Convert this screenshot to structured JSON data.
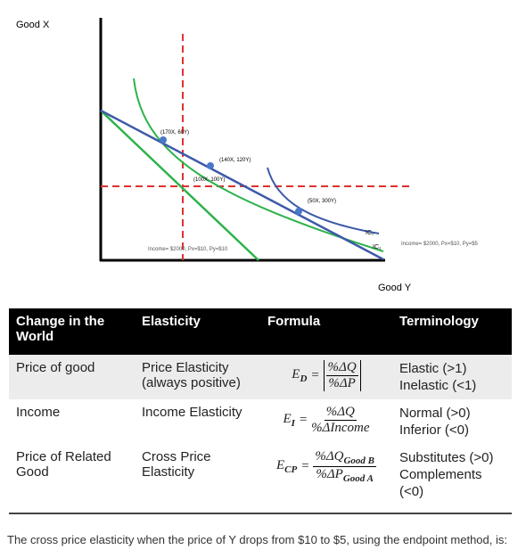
{
  "diagram": {
    "y_axis_label": "Good X",
    "x_axis_label": "Good Y",
    "points": [
      "(170X, 60Y)",
      "(140X, 120Y)",
      "(100X, 100Y)",
      "(50X, 300Y)"
    ],
    "curves": [
      "IC₂",
      "IC₁"
    ],
    "budget_lines": [
      "Income= $2000, Px=$10, Py=$5",
      "Income= $2000, Px=$10, Py=$10"
    ]
  },
  "table": {
    "headers": [
      "Change in the World",
      "Elasticity",
      "Formula",
      "Terminology"
    ],
    "rows": [
      {
        "change": "Price of good",
        "elasticity": "Price Elasticity (always positive)",
        "formula": {
          "lhs": "E",
          "lhs_sub": "D",
          "op": "=",
          "num": "%ΔQ",
          "den": "%ΔP"
        },
        "terminology": [
          "Elastic (>1)",
          "Inelastic (<1)"
        ]
      },
      {
        "change": "Income",
        "elasticity": "Income Elasticity",
        "formula": {
          "lhs": "E",
          "lhs_sub": "I",
          "op": "=",
          "num": "%ΔQ",
          "den": "%ΔIncome"
        },
        "terminology": [
          "Normal (>0)",
          "Inferior (<0)"
        ]
      },
      {
        "change": "Price of Related Good",
        "elasticity": "Cross Price Elasticity",
        "formula": {
          "lhs": "E",
          "lhs_sub": "CP",
          "op": "=",
          "num": "%ΔQ",
          "num_sub": "Good B",
          "den": "%ΔP",
          "den_sub": "Good A"
        },
        "terminology": [
          "Substitutes (>0)",
          "Complements",
          "(<0)"
        ]
      }
    ]
  },
  "question": "The cross price elasticity when the price of Y drops from $10 to $5, using the endpoint method, is:"
}
